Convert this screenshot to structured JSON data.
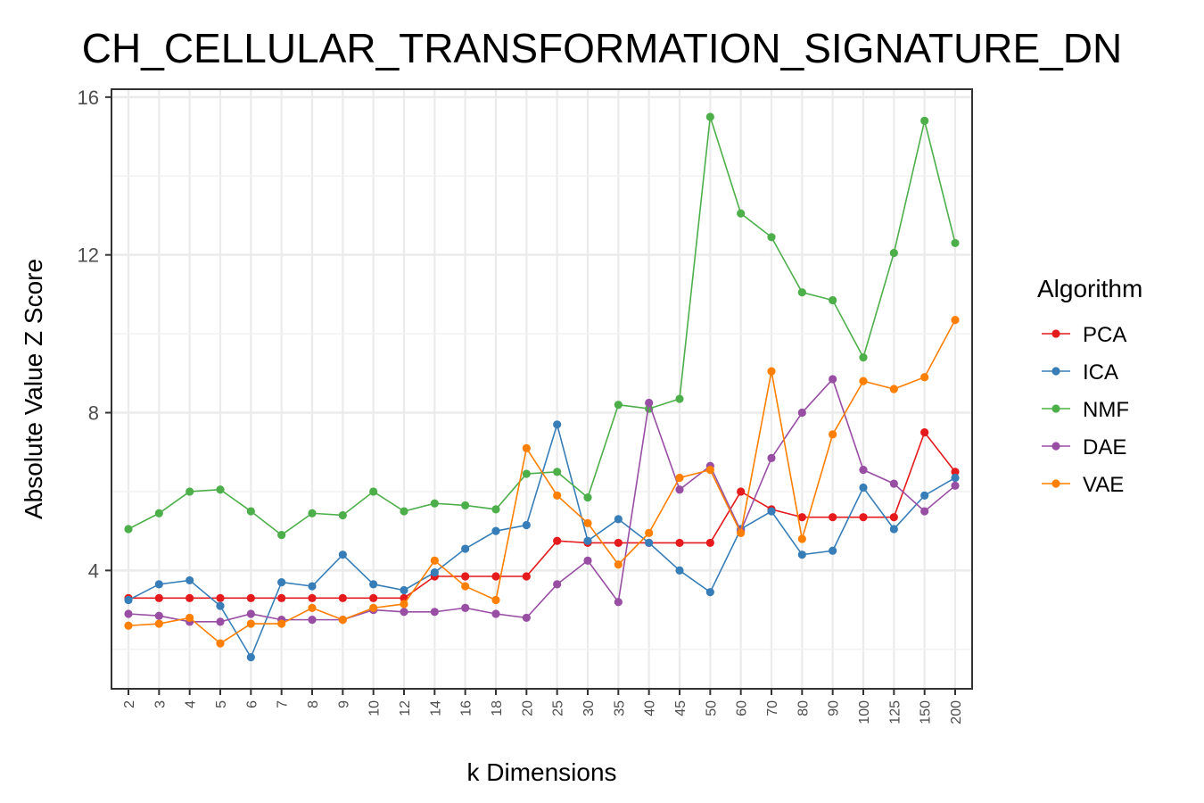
{
  "chart_data": {
    "type": "line",
    "title": "CH_CELLULAR_TRANSFORMATION_SIGNATURE_DN",
    "xlabel": "k Dimensions",
    "ylabel": "Absolute Value Z Score",
    "categories": [
      "2",
      "3",
      "4",
      "5",
      "6",
      "7",
      "8",
      "9",
      "10",
      "12",
      "14",
      "16",
      "18",
      "20",
      "25",
      "30",
      "35",
      "40",
      "45",
      "50",
      "60",
      "70",
      "80",
      "90",
      "100",
      "125",
      "150",
      "200"
    ],
    "ylim": [
      1,
      16.2
    ],
    "yticks": [
      4,
      8,
      12,
      16
    ],
    "grid": true,
    "legend": {
      "title": "Algorithm",
      "position": "right"
    },
    "series": [
      {
        "name": "PCA",
        "color": "#e41a1c",
        "values": [
          3.3,
          3.3,
          3.3,
          3.3,
          3.3,
          3.3,
          3.3,
          3.3,
          3.3,
          3.3,
          3.85,
          3.85,
          3.85,
          3.85,
          4.75,
          4.7,
          4.7,
          4.7,
          4.7,
          4.7,
          6.0,
          5.55,
          5.35,
          5.35,
          5.35,
          5.35,
          7.5,
          6.5
        ]
      },
      {
        "name": "ICA",
        "color": "#377eb8",
        "values": [
          3.25,
          3.65,
          3.75,
          3.1,
          1.8,
          3.7,
          3.6,
          4.4,
          3.65,
          3.5,
          3.95,
          4.55,
          5.0,
          5.15,
          7.7,
          4.75,
          5.3,
          4.7,
          4.0,
          3.45,
          5.05,
          5.5,
          4.4,
          4.5,
          6.1,
          5.05,
          5.9,
          6.35
        ]
      },
      {
        "name": "NMF",
        "color": "#4daf4a",
        "values": [
          5.05,
          5.45,
          6.0,
          6.05,
          5.5,
          4.9,
          5.45,
          5.4,
          6.0,
          5.5,
          5.7,
          5.65,
          5.55,
          6.45,
          6.5,
          5.85,
          8.2,
          8.1,
          8.35,
          15.5,
          13.05,
          12.45,
          11.05,
          10.85,
          9.4,
          12.05,
          15.4,
          12.3
        ]
      },
      {
        "name": "DAE",
        "color": "#984ea3",
        "values": [
          2.9,
          2.85,
          2.7,
          2.7,
          2.9,
          2.75,
          2.75,
          2.75,
          3.0,
          2.95,
          2.95,
          3.05,
          2.9,
          2.8,
          3.65,
          4.25,
          3.2,
          8.25,
          6.05,
          6.65,
          5.0,
          6.85,
          8.0,
          8.85,
          6.55,
          6.2,
          5.5,
          6.15
        ]
      },
      {
        "name": "VAE",
        "color": "#ff7f00",
        "values": [
          2.6,
          2.65,
          2.8,
          2.15,
          2.65,
          2.65,
          3.05,
          2.75,
          3.05,
          3.15,
          4.25,
          3.6,
          3.25,
          7.1,
          5.9,
          5.2,
          4.15,
          4.95,
          6.35,
          6.55,
          4.95,
          9.05,
          4.8,
          7.45,
          8.8,
          8.6,
          8.9,
          10.35
        ]
      }
    ]
  }
}
